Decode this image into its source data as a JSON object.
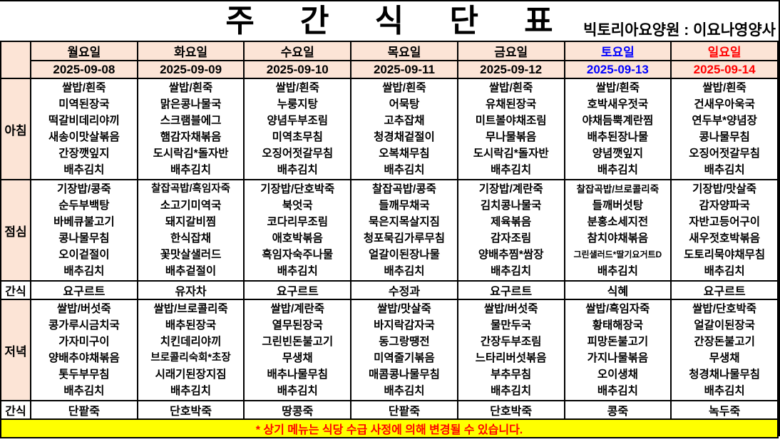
{
  "header": {
    "title": "주 간 식 단 표",
    "subtitle": "빅토리아요양원 : 이요나영양사"
  },
  "colors": {
    "header_bg": "#FCE4D6",
    "saturday": "#0000FF",
    "sunday": "#FF0000",
    "footer_bg": "#FFFF00",
    "footer_text": "#FF0000"
  },
  "days": [
    {
      "label": "월요일",
      "date": "2025-09-08",
      "color": "#000000"
    },
    {
      "label": "화요일",
      "date": "2025-09-09",
      "color": "#000000"
    },
    {
      "label": "수요일",
      "date": "2025-09-10",
      "color": "#000000"
    },
    {
      "label": "목요일",
      "date": "2025-09-11",
      "color": "#000000"
    },
    {
      "label": "금요일",
      "date": "2025-09-12",
      "color": "#000000"
    },
    {
      "label": "토요일",
      "date": "2025-09-13",
      "color": "#0000FF"
    },
    {
      "label": "일요일",
      "date": "2025-09-14",
      "color": "#FF0000"
    }
  ],
  "sections": [
    {
      "label": "아침",
      "kind": "meal",
      "columns": [
        [
          "쌀밥/흰죽",
          "미역된장국",
          "떡갈비데리야끼",
          "새송이맛살볶음",
          "간장깻잎지",
          "배추김치"
        ],
        [
          "쌀밥/흰죽",
          "맑은콩나물국",
          "스크램블에그",
          "햄감자채볶음",
          "도시락김*돌자반",
          "배추김치"
        ],
        [
          "쌀밥/흰죽",
          "누룽지탕",
          "양념두부조림",
          "미역초무침",
          "오징어젓갈무침",
          "배추김치"
        ],
        [
          "쌀밥/흰죽",
          "어묵탕",
          "고추잡채",
          "청경채겉절이",
          "오복채무침",
          "배추김치"
        ],
        [
          "쌀밥/흰죽",
          "유채된장국",
          "미트볼야채조림",
          "무나물볶음",
          "도시락김*돌자반",
          "배추김치"
        ],
        [
          "쌀밥/흰죽",
          "호박새우젓국",
          "야채듬뿍계란찜",
          "배추된장나물",
          "양념깻잎지",
          "배추김치"
        ],
        [
          "쌀밥/흰죽",
          "건새우아욱국",
          "연두부*양념장",
          "콩나물무침",
          "오징어젓갈무침",
          "배추김치"
        ]
      ]
    },
    {
      "label": "점심",
      "kind": "meal",
      "columns": [
        [
          "기장밥/콩죽",
          "순두부백탕",
          "바베큐불고기",
          "콩나물무침",
          "오이겉절이",
          "배추김치"
        ],
        [
          "찰잡곡밥/흑임자죽",
          "소고기미역국",
          "돼지갈비찜",
          "한식잡채",
          "꽃맛살샐러드",
          "배추겉절이"
        ],
        [
          "기장밥/단호박죽",
          "북엇국",
          "코다리무조림",
          "애호박볶음",
          "흑임자숙주나물",
          "배추김치"
        ],
        [
          "찰잡곡밥/콩죽",
          "들깨무채국",
          "묵은지목살지짐",
          "청포묵김가루무침",
          "얼갈이된장나물",
          "배추김치"
        ],
        [
          "기장밥/계란죽",
          "김치콩나물국",
          "제육볶음",
          "감자조림",
          "양배추찜*쌈장",
          "배추김치"
        ],
        [
          "찰잡곡밥/브로콜리죽",
          "들깨버섯탕",
          "분홍소세지전",
          "참치야채볶음",
          "그린샐러드*딸기요거트D",
          "배추김치"
        ],
        [
          "기장밥/맛살죽",
          "감자양파국",
          "자반고등어구이",
          "새우젓호박볶음",
          "도토리묵야채무침",
          "배추김치"
        ]
      ]
    },
    {
      "label": "간식",
      "kind": "snack",
      "columns": [
        [
          "요구르트"
        ],
        [
          "유자차"
        ],
        [
          "요구르트"
        ],
        [
          "수정과"
        ],
        [
          "요구르트"
        ],
        [
          "식혜"
        ],
        [
          "요구르트"
        ]
      ]
    },
    {
      "label": "저녁",
      "kind": "meal",
      "columns": [
        [
          "쌀밥/버섯죽",
          "콩가루시금치국",
          "가자미구이",
          "양배추야채볶음",
          "톳두부무침",
          "배추김치"
        ],
        [
          "쌀밥/브로콜리죽",
          "배추된장국",
          "치킨데리야끼",
          "브로콜리숙회*초장",
          "시래기된장지짐",
          "배추김치"
        ],
        [
          "쌀밥/계란죽",
          "열무된장국",
          "그린빈돈불고기",
          "무생채",
          "배추나물무침",
          "배추김치"
        ],
        [
          "쌀밥/맛살죽",
          "바지락감자국",
          "동그랑땡전",
          "미역줄기볶음",
          "매콤콩나물무침",
          "배추김치"
        ],
        [
          "쌀밥/버섯죽",
          "물만두국",
          "간장두부조림",
          "느타리버섯볶음",
          "부추무침",
          "배추김치"
        ],
        [
          "쌀밥/흑임자죽",
          "황태해장국",
          "피망돈불고기",
          "가지나물볶음",
          "오이생채",
          "배추김치"
        ],
        [
          "쌀밥/단호박죽",
          "얼갈이된장국",
          "간장돈불고기",
          "무생채",
          "청경채나물무침",
          "배추김치"
        ]
      ]
    },
    {
      "label": "간식",
      "kind": "snack",
      "columns": [
        [
          "단팥죽"
        ],
        [
          "단호박죽"
        ],
        [
          "땅콩죽"
        ],
        [
          "단팥죽"
        ],
        [
          "단호박죽"
        ],
        [
          "콩죽"
        ],
        [
          "녹두죽"
        ]
      ]
    }
  ],
  "footer": {
    "notice": "* 상기 메뉴는 식당 수급 사정에 의해 변경될 수 있습니다."
  }
}
